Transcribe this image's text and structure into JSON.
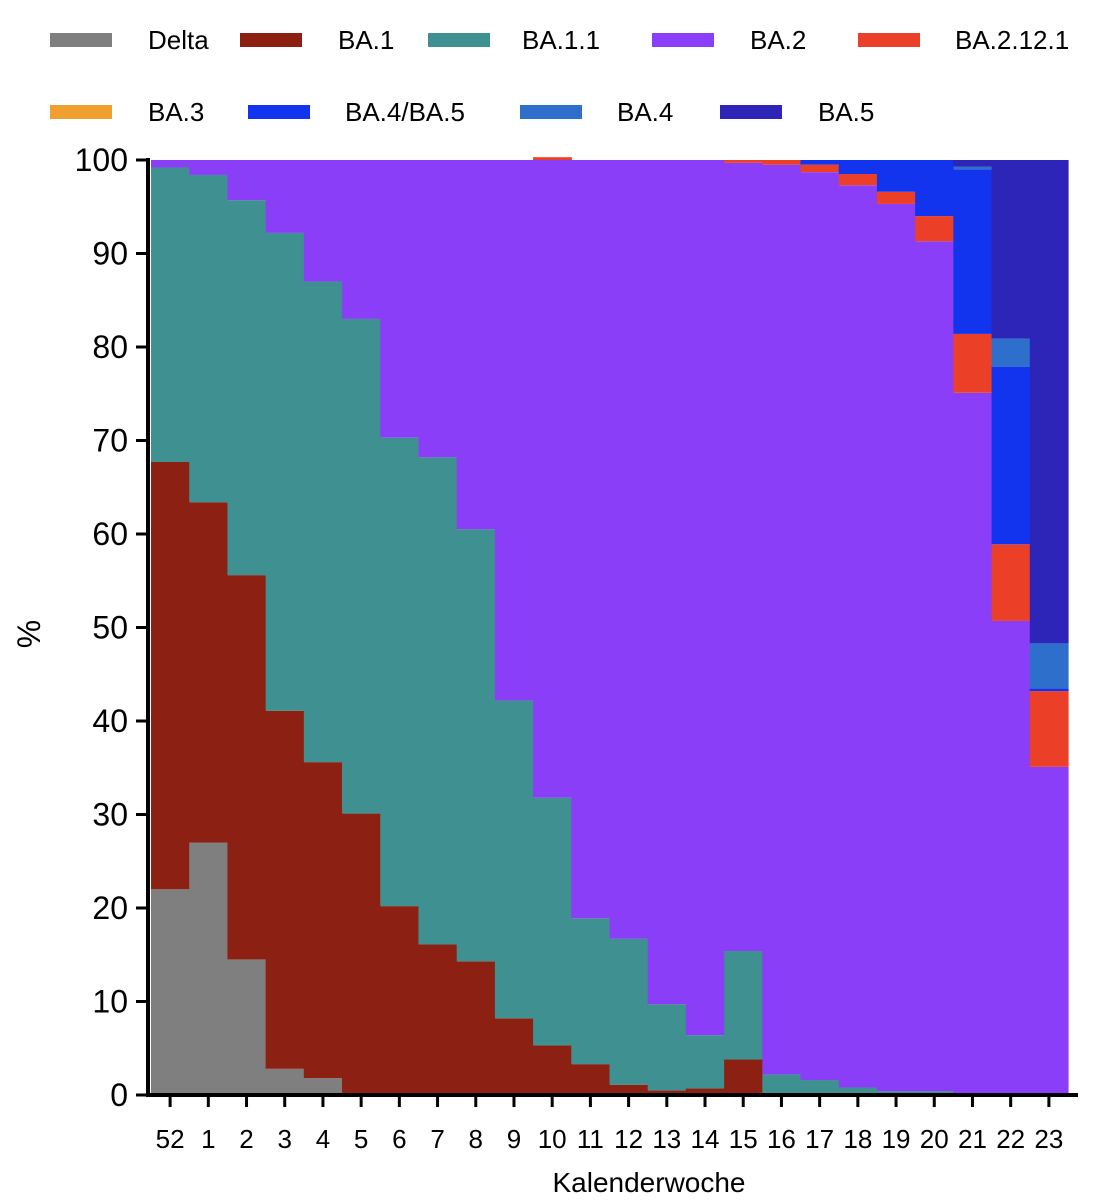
{
  "chart_data": {
    "type": "stacked-bar",
    "title": "",
    "xlabel": "Kalenderwoche",
    "ylabel": "%",
    "ylim": [
      0,
      100
    ],
    "yticks": [
      0,
      10,
      20,
      30,
      40,
      50,
      60,
      70,
      80,
      90,
      100
    ],
    "categories": [
      "52",
      "1",
      "2",
      "3",
      "4",
      "5",
      "6",
      "7",
      "8",
      "9",
      "10",
      "11",
      "12",
      "13",
      "14",
      "15",
      "16",
      "17",
      "18",
      "19",
      "20",
      "21",
      "22",
      "23"
    ],
    "stack_order": [
      "Delta",
      "BA.1",
      "BA.1.1",
      "BA.2",
      "BA.2.12.1",
      "BA.4/BA.5",
      "BA.4",
      "BA.5",
      "BA.3"
    ],
    "legend_order": [
      "Delta",
      "BA.1",
      "BA.1.1",
      "BA.2",
      "BA.2.12.1",
      "BA.3",
      "BA.4/BA.5",
      "BA.4",
      "BA.5"
    ],
    "colors": {
      "Delta": "#7f7f7f",
      "BA.1": "#8b2013",
      "BA.1.1": "#3f9090",
      "BA.2": "#8a3ef7",
      "BA.2.12.1": "#eb4027",
      "BA.3": "#f0a030",
      "BA.4/BA.5": "#1234ee",
      "BA.4": "#2f6fcc",
      "BA.5": "#2d25b8"
    },
    "series": [
      {
        "name": "Delta",
        "values": [
          22,
          27,
          14.5,
          2.8,
          1.8,
          0,
          0,
          0,
          0,
          0,
          0,
          0,
          0,
          0,
          0,
          0,
          0,
          0,
          0,
          0,
          0,
          0,
          0,
          0
        ]
      },
      {
        "name": "BA.1",
        "values": [
          45.7,
          36.4,
          41.1,
          38.3,
          33.8,
          30.1,
          20.2,
          16.1,
          14.3,
          8.2,
          5.3,
          3.3,
          1.1,
          0.5,
          0.7,
          3.8,
          0,
          0,
          0,
          0,
          0,
          0,
          0,
          0
        ]
      },
      {
        "name": "BA.1.1",
        "values": [
          31.5,
          35,
          40.1,
          51.1,
          51.4,
          52.9,
          50.1,
          52.1,
          46.2,
          34,
          26.5,
          15.6,
          15.6,
          9.2,
          5.7,
          11.6,
          2.2,
          1.6,
          0.8,
          0.4,
          0.4,
          0,
          0,
          0
        ]
      },
      {
        "name": "BA.2",
        "values": [
          0.8,
          1.6,
          4.3,
          7.8,
          13,
          17,
          29.7,
          31.8,
          39.5,
          57.8,
          68.2,
          81.1,
          83.3,
          90.3,
          93.6,
          84.3,
          97.3,
          97.1,
          96.5,
          94.9,
          90.9,
          75.1,
          50.7,
          35.1
        ]
      },
      {
        "name": "BA.2.12.1",
        "values": [
          0,
          0,
          0,
          0,
          0,
          0,
          0,
          0,
          0,
          0,
          0.3,
          0,
          0,
          0,
          0,
          0.3,
          0.5,
          0.8,
          1.2,
          1.3,
          2.7,
          6.3,
          8.2,
          8.1
        ]
      },
      {
        "name": "BA.4/BA.5",
        "values": [
          0,
          0,
          0,
          0,
          0,
          0,
          0,
          0,
          0,
          0,
          0,
          0,
          0,
          0,
          0,
          0,
          0,
          0.5,
          1.5,
          3.4,
          6,
          17.6,
          19,
          0.3
        ]
      },
      {
        "name": "BA.4",
        "values": [
          0,
          0,
          0,
          0,
          0,
          0,
          0,
          0,
          0,
          0,
          0,
          0,
          0,
          0,
          0,
          0,
          0,
          0,
          0,
          0,
          0,
          0.3,
          3,
          4.8
        ]
      },
      {
        "name": "BA.5",
        "values": [
          0,
          0,
          0,
          0,
          0,
          0,
          0,
          0,
          0,
          0,
          0,
          0,
          0,
          0,
          0,
          0,
          0,
          0,
          0,
          0,
          0,
          0.7,
          19.1,
          51.7
        ]
      },
      {
        "name": "BA.3",
        "values": [
          0,
          0,
          0,
          0,
          0,
          0,
          0,
          0,
          0,
          0,
          0,
          0,
          0,
          0,
          0,
          0,
          0,
          0,
          0,
          0,
          0,
          0,
          0,
          0
        ]
      }
    ]
  }
}
